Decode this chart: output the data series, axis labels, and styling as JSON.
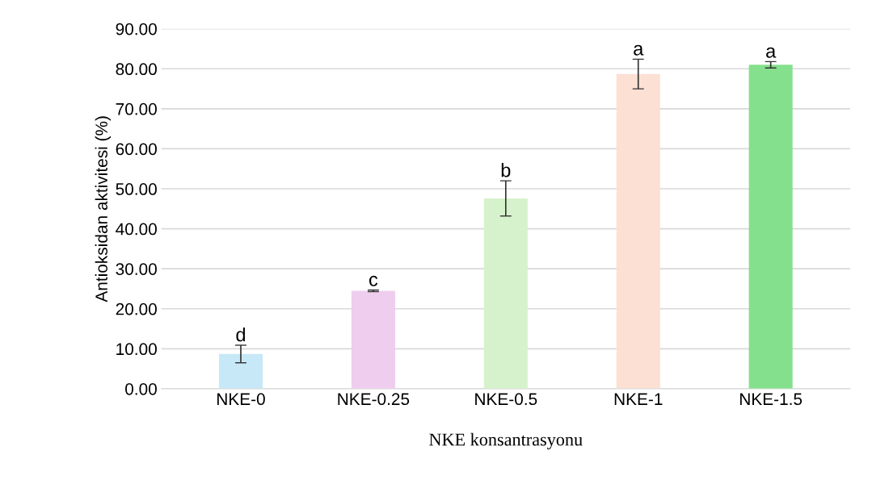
{
  "chart_data": {
    "type": "bar",
    "xlabel": "NKE konsantrasyonu",
    "ylabel": "Antioksidan aktivitesi (%)",
    "categories": [
      "NKE-0",
      "NKE-0.25",
      "NKE-0.5",
      "NKE-1",
      "NKE-1.5"
    ],
    "values": [
      8.7,
      24.5,
      47.6,
      78.7,
      81.0
    ],
    "errors": [
      2.2,
      0.2,
      4.4,
      3.7,
      0.8
    ],
    "colors": [
      "#c6e8f7",
      "#efcdee",
      "#d6f2cc",
      "#fbe0d3",
      "#84e08c"
    ],
    "ylim": [
      0,
      90
    ],
    "yticks": [
      {
        "value": 0,
        "label": "0.00"
      },
      {
        "value": 10,
        "label": "10.00"
      },
      {
        "value": 20,
        "label": "20.00"
      },
      {
        "value": 30,
        "label": "30.00"
      },
      {
        "value": 40,
        "label": "40.00"
      },
      {
        "value": 50,
        "label": "50.00"
      },
      {
        "value": 60,
        "label": "60.00"
      },
      {
        "value": 70,
        "label": "70.00"
      },
      {
        "value": 80,
        "label": "80.00"
      },
      {
        "value": 90,
        "label": "90.00"
      }
    ],
    "grid": "y",
    "annotations": [
      {
        "text": "d",
        "x": "NKE-0",
        "y": 10.9
      },
      {
        "text": "c",
        "x": "NKE-0.25",
        "y": 24.7
      },
      {
        "text": "b",
        "x": "NKE-0.5",
        "y": 52.0
      },
      {
        "text": "a",
        "x": "NKE-1",
        "y": 82.4
      },
      {
        "text": "a",
        "x": "NKE-1.5",
        "y": 81.8
      }
    ]
  }
}
